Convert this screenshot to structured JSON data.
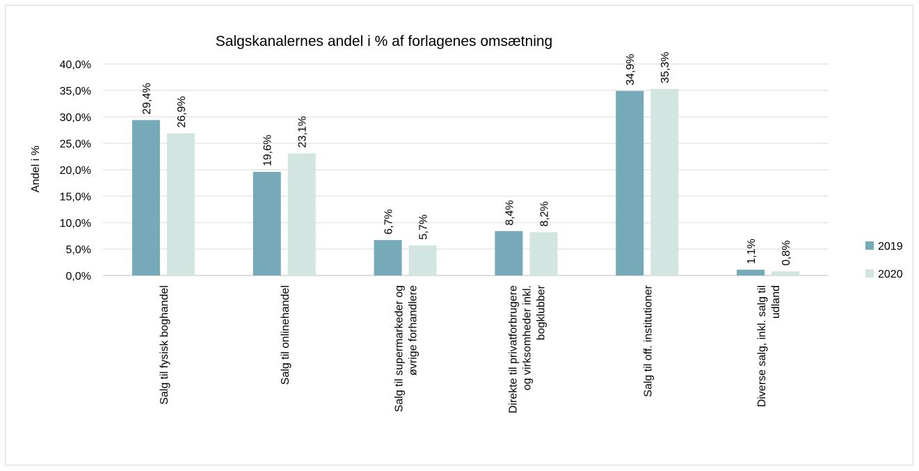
{
  "chart_data": {
    "type": "bar",
    "title": "Salgskanalernes andel i % af forlagenes omsætning",
    "xlabel": "",
    "ylabel": "Andel i %",
    "ylim": [
      0,
      40
    ],
    "yticks": [
      "0,0%",
      "5,0%",
      "10,0%",
      "15,0%",
      "20,0%",
      "25,0%",
      "30,0%",
      "35,0%",
      "40,0%"
    ],
    "grid": true,
    "legend_position": "right",
    "categories": [
      [
        "Salg til fysisk boghandel"
      ],
      [
        "Salg til onlinehandel"
      ],
      [
        "Salg til supermarkeder og",
        "øvrige forhandlere"
      ],
      [
        "Direkte til privatforbrugere",
        "og virksomheder inkl.",
        "bogklubber"
      ],
      [
        "Salg til off. institutioner"
      ],
      [
        "Diverse salg, inkl. salg til",
        "udland"
      ]
    ],
    "series": [
      {
        "name": "2019",
        "color": "#76aab8",
        "values": [
          29.4,
          19.6,
          6.7,
          8.4,
          34.9,
          1.1
        ],
        "labels": [
          "29,4%",
          "19,6%",
          "6,7%",
          "8,4%",
          "34,9%",
          "1,1%"
        ]
      },
      {
        "name": "2020",
        "color": "#d3e5e1",
        "values": [
          26.9,
          23.1,
          5.7,
          8.2,
          35.3,
          0.8
        ],
        "labels": [
          "26,9%",
          "23,1%",
          "5,7%",
          "8,2%",
          "35,3%",
          "0,8%"
        ]
      }
    ]
  }
}
